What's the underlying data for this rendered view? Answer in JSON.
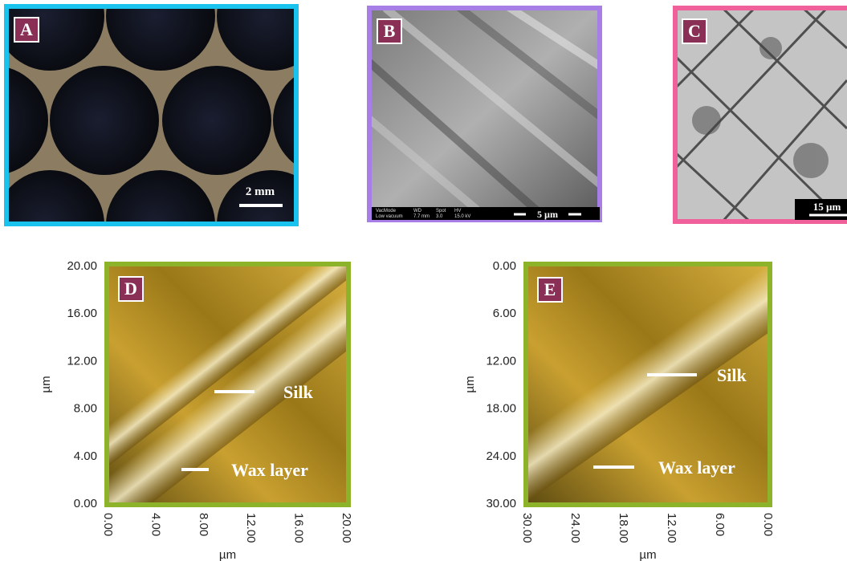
{
  "panels": [
    {
      "label": "A",
      "scale_bar": "2 mm"
    },
    {
      "label": "B",
      "scale_bar": "5 µm",
      "info_bar": [
        [
          "VacMode",
          "Low vacuum"
        ],
        [
          "WD",
          "7.7 mm"
        ],
        [
          "Spot",
          "3.0"
        ],
        [
          "HV",
          "15.0 kV"
        ]
      ]
    },
    {
      "label": "C",
      "scale_bar": "15 µm"
    },
    {
      "label": "D",
      "annotations": [
        "Silk",
        "Wax layer"
      ],
      "x_axis": {
        "label": "µm",
        "ticks": [
          "0.00",
          "4.00",
          "8.00",
          "12.00",
          "16.00",
          "20.00"
        ]
      },
      "y_axis": {
        "label": "µm",
        "ticks": [
          "20.00",
          "16.00",
          "12.00",
          "8.00",
          "4.00",
          "0.00"
        ]
      }
    },
    {
      "label": "E",
      "annotations": [
        "Silk",
        "Wax layer"
      ],
      "x_axis": {
        "label": "µm",
        "ticks": [
          "30.00",
          "24.00",
          "18.00",
          "12.00",
          "6.00",
          "0.00"
        ]
      },
      "y_axis": {
        "label": "µm",
        "ticks": [
          "0.00",
          "6.00",
          "12.00",
          "18.00",
          "24.00",
          "30.00"
        ]
      }
    }
  ]
}
